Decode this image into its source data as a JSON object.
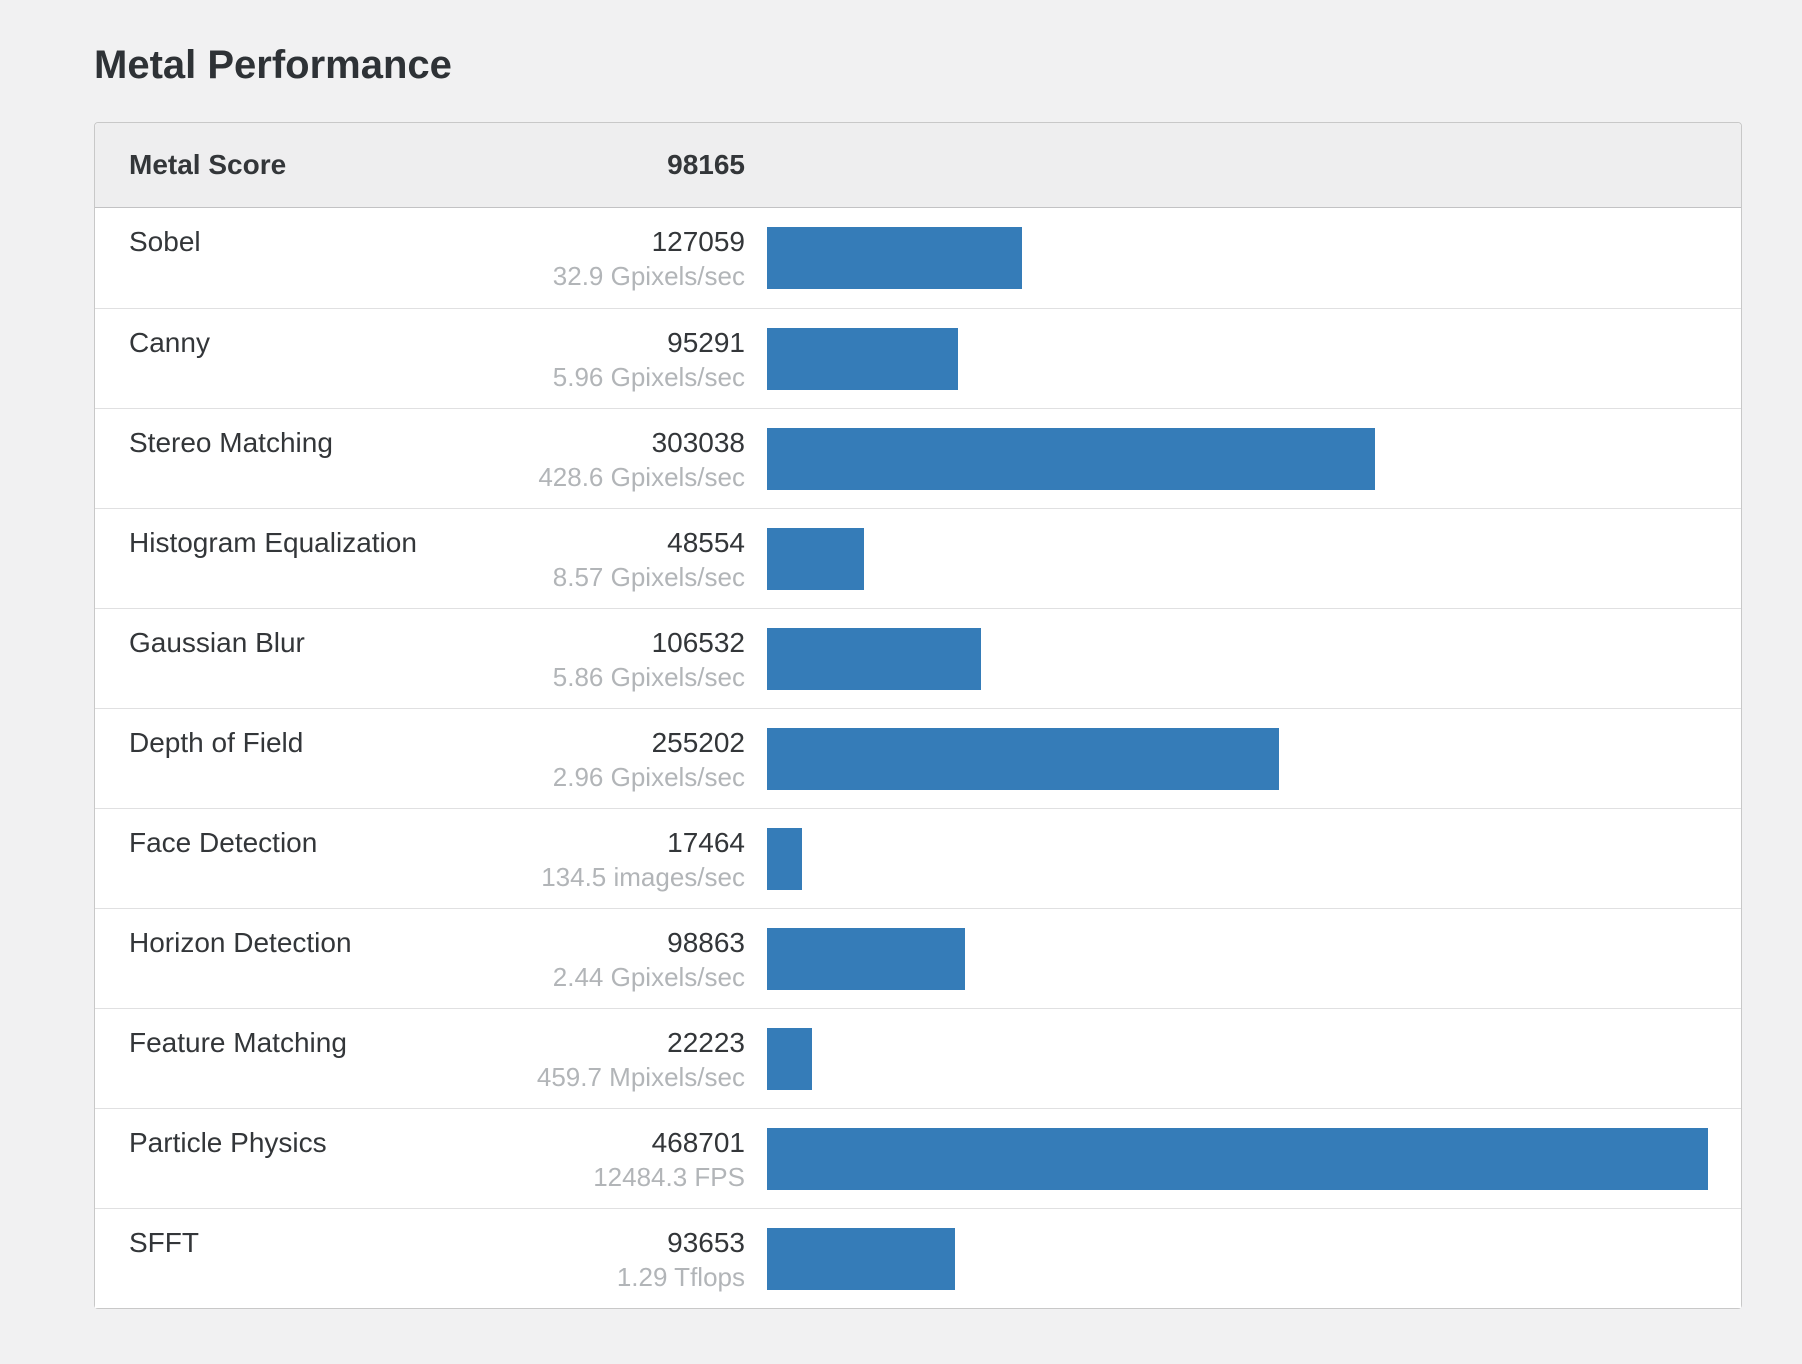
{
  "page": {
    "title": "Metal Performance"
  },
  "score_table": {
    "header": {
      "label": "Metal Score",
      "value": "98165"
    }
  },
  "colors": {
    "bar": "#357cb8",
    "page_bg": "#f1f1f2",
    "card_bg": "#ffffff",
    "header_bg": "#eeeeef",
    "text_dark": "#333639",
    "text_unit": "#b2b5b8"
  },
  "chart_data": {
    "type": "bar",
    "orientation": "horizontal",
    "title": "Metal Performance",
    "header_label": "Metal Score",
    "header_value": 98165,
    "categories": [
      "Sobel",
      "Canny",
      "Stereo Matching",
      "Histogram Equalization",
      "Gaussian Blur",
      "Depth of Field",
      "Face Detection",
      "Horizon Detection",
      "Feature Matching",
      "Particle Physics",
      "SFFT"
    ],
    "values": [
      127059,
      95291,
      303038,
      48554,
      106532,
      255202,
      17464,
      98863,
      22223,
      468701,
      93653
    ],
    "rates": [
      "32.9 Gpixels/sec",
      "5.96 Gpixels/sec",
      "428.6 Gpixels/sec",
      "8.57 Gpixels/sec",
      "5.86 Gpixels/sec",
      "2.96 Gpixels/sec",
      "134.5 images/sec",
      "2.44 Gpixels/sec",
      "459.7 Mpixels/sec",
      "12484.3 FPS",
      "1.29 Tflops"
    ],
    "xlim": [
      0,
      468701
    ],
    "bar_color": "#357cb8",
    "grid": false,
    "legend": false
  }
}
